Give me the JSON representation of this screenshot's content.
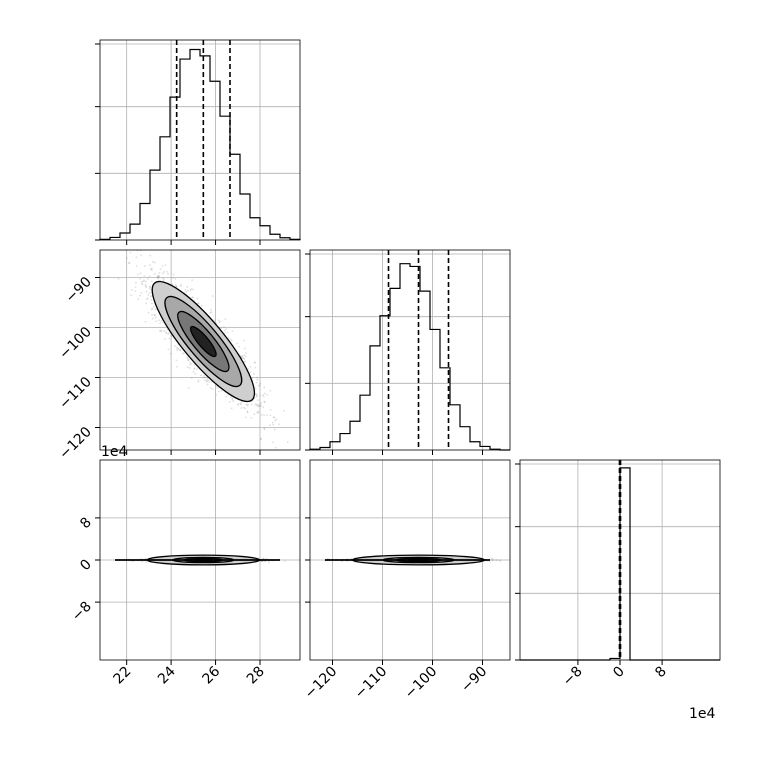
{
  "figure": {
    "type": "corner-plot",
    "offset_text_panel5_y": "1e4",
    "offset_text_panel6_x": "1e4"
  },
  "chart_data": [
    {
      "id": "hist-p0",
      "type": "histogram",
      "x_range": [
        20.8,
        29.8
      ],
      "bin_edges": [
        20.8,
        21.25,
        21.7,
        22.15,
        22.6,
        23.05,
        23.5,
        23.95,
        24.4,
        24.85,
        25.3,
        25.75,
        26.2,
        26.65,
        27.1,
        27.55,
        28.0,
        28.45,
        28.9,
        29.35,
        29.8
      ],
      "counts": [
        0.2,
        0.8,
        2.2,
        5.0,
        11.5,
        22.0,
        32.5,
        45.0,
        57.0,
        60.0,
        58.0,
        50.0,
        39.0,
        27.0,
        14.5,
        7.0,
        4.5,
        1.8,
        0.7,
        0.2
      ],
      "y_max": 63,
      "quantiles": [
        24.25,
        25.45,
        26.65
      ],
      "x_ticks": [
        22,
        24,
        26,
        28
      ],
      "show_x_tick_labels": false,
      "show_y_tick_labels": false,
      "grid": true
    },
    {
      "id": "hist2d-p0-p1",
      "type": "2d-density",
      "x_range": [
        20.8,
        29.8
      ],
      "y_range": [
        -124.5,
        -84.5
      ],
      "x_ticks": [
        22,
        24,
        26,
        28
      ],
      "y_ticks": [
        -90,
        -100,
        -110,
        -120
      ],
      "y_tick_labels": [
        "−90",
        "−100",
        "−110",
        "−120"
      ],
      "show_x_tick_labels": false,
      "mean": [
        25.45,
        -102.8
      ],
      "sd": [
        1.15,
        6.0
      ],
      "correlation": -0.86,
      "contour_levels_sigma": [
        0.5,
        1.0,
        1.5,
        2.0
      ],
      "grid": true
    },
    {
      "id": "hist-p1",
      "type": "histogram",
      "x_range": [
        -124.5,
        -84.5
      ],
      "bin_edges": [
        -124.5,
        -122.5,
        -120.5,
        -118.5,
        -116.5,
        -114.5,
        -112.5,
        -110.5,
        -108.5,
        -106.5,
        -104.5,
        -102.5,
        -100.5,
        -98.5,
        -96.5,
        -94.5,
        -92.5,
        -90.5,
        -88.5,
        -86.5,
        -84.5
      ],
      "counts": [
        0.3,
        0.9,
        3.0,
        6.0,
        10.5,
        20.0,
        38.0,
        49.0,
        59.0,
        68.0,
        67.0,
        58.0,
        44.0,
        30.0,
        16.5,
        8.5,
        3.0,
        1.3,
        0.3,
        0.0
      ],
      "y_max": 73,
      "quantiles": [
        -108.8,
        -102.8,
        -96.8
      ],
      "x_ticks": [
        -120,
        -110,
        -100,
        -90
      ],
      "show_x_tick_labels": false,
      "show_y_tick_labels": false,
      "grid": true
    },
    {
      "id": "hist2d-p0-p2",
      "type": "2d-density",
      "x_range": [
        20.8,
        29.8
      ],
      "y_range": [
        -19,
        19
      ],
      "x_ticks": [
        22,
        24,
        26,
        28
      ],
      "x_tick_labels": [
        "22",
        "24",
        "26",
        "28"
      ],
      "y_ticks": [
        8,
        0,
        -8
      ],
      "y_tick_labels": [
        "8",
        "0",
        "−8"
      ],
      "mean": [
        25.45,
        0
      ],
      "sd": [
        1.15,
        0.15
      ],
      "correlation": 0,
      "grid": true
    },
    {
      "id": "hist2d-p1-p2",
      "type": "2d-density",
      "x_range": [
        -124.5,
        -84.5
      ],
      "y_range": [
        -19,
        19
      ],
      "x_ticks": [
        -120,
        -110,
        -100,
        -90
      ],
      "x_tick_labels": [
        "−120",
        "−110",
        "−100",
        "−90"
      ],
      "y_ticks": [
        8,
        0,
        -8
      ],
      "show_y_tick_labels": false,
      "mean": [
        -102.8,
        0
      ],
      "sd": [
        6.0,
        0.15
      ],
      "correlation": 0,
      "grid": true
    },
    {
      "id": "hist-p2",
      "type": "histogram",
      "x_range": [
        -19,
        19
      ],
      "bin_edges": [
        -19,
        -17.1,
        -15.2,
        -13.3,
        -11.4,
        -9.5,
        -7.6,
        -5.7,
        -3.8,
        -1.9,
        0,
        1.9,
        3.8,
        5.7,
        7.6,
        9.5,
        11.4,
        13.3,
        15.2,
        17.1,
        19
      ],
      "counts": [
        0,
        0,
        0,
        0,
        0,
        0,
        0,
        0,
        0,
        0.4,
        49.0,
        0,
        0,
        0,
        0,
        0,
        0,
        0,
        0,
        0
      ],
      "y_max": 51,
      "quantiles": [
        -0.1,
        0.0,
        0.1
      ],
      "x_ticks": [
        -8,
        0,
        8
      ],
      "x_tick_labels": [
        "−8",
        "0",
        "8"
      ],
      "show_y_tick_labels": false,
      "grid": true
    }
  ]
}
